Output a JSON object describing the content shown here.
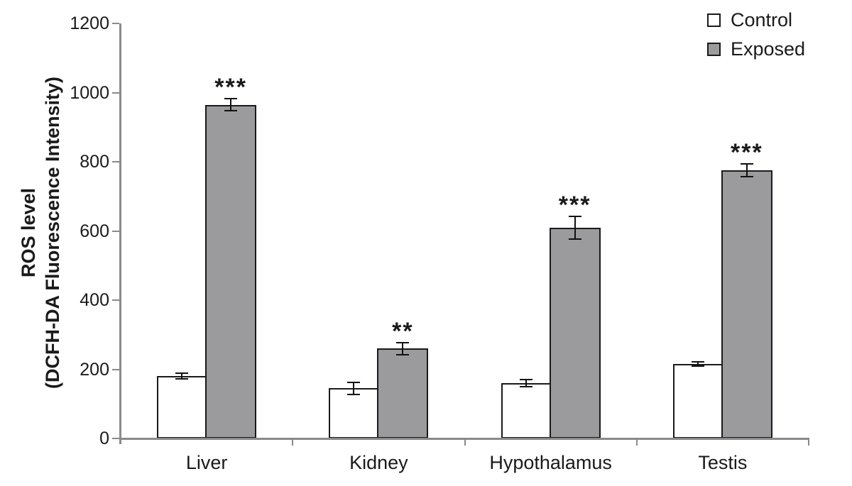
{
  "chart_data": {
    "type": "bar",
    "title": "",
    "ylabel_line1": "ROS level",
    "ylabel_line2": "(DCFH-DA Fluorescence Intensity)",
    "xlabel": "",
    "ylim": [
      0,
      1200
    ],
    "yticks": [
      0,
      200,
      400,
      600,
      800,
      1000,
      1200
    ],
    "categories": [
      "Liver",
      "Kidney",
      "Hypothalamus",
      "Testis"
    ],
    "series": [
      {
        "name": "Control",
        "fill": "#ffffff",
        "values": [
          180,
          145,
          160,
          215
        ],
        "errors": [
          10,
          20,
          12,
          8
        ]
      },
      {
        "name": "Exposed",
        "fill": "#9b9b9d",
        "values": [
          965,
          260,
          610,
          775
        ],
        "errors": [
          20,
          20,
          35,
          20
        ]
      }
    ],
    "significance": {
      "series": "Exposed",
      "labels": [
        "***",
        "**",
        "***",
        "***"
      ]
    },
    "legend_position": "top-right",
    "grid": false,
    "error_bars": "both",
    "colors": {
      "bar_stroke": "#1a1a1a",
      "axis": "#8a8a8a",
      "text": "#1a1a1a"
    }
  }
}
